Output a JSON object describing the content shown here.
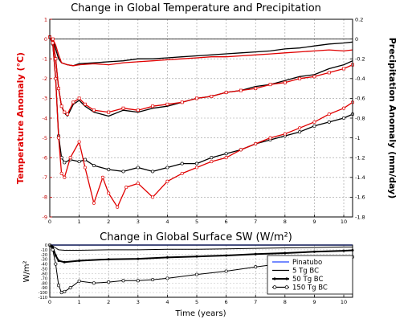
{
  "chart_data": [
    {
      "type": "line",
      "title": "Change in Global Temperature and Precipitation",
      "xlabel": "",
      "ylabel": "Temperature Anomaly (°C)",
      "ylabel_right": "Precipitation Anomaly (mm/day)",
      "xlim": [
        0,
        10.3
      ],
      "ylim": [
        -9,
        1
      ],
      "ylim_right": [
        -1.8,
        0.2
      ],
      "xticks": [
        "0",
        "1",
        "2",
        "3",
        "4",
        "5",
        "6",
        "7",
        "8",
        "9",
        "10"
      ],
      "yticks": [
        "1",
        "0",
        "-1",
        "-2",
        "-3",
        "-4",
        "-5",
        "-6",
        "-7",
        "-8",
        "-9"
      ],
      "yticks_right": [
        "0.2",
        "0",
        "-0.2",
        "-0.4",
        "-0.6",
        "-0.8",
        "-1",
        "-1.2",
        "-1.4",
        "-1.6",
        "-1.8"
      ],
      "grid": true,
      "colors": {
        "temperature": "#e00000",
        "precipitation": "#000000",
        "axis_left": "#c00000"
      },
      "series": [
        {
          "kind": "temperature",
          "case": "5 Tg BC",
          "marker": "none",
          "x": [
            0,
            0.1,
            0.2,
            0.3,
            0.4,
            0.6,
            0.8,
            1,
            1.5,
            2,
            2.5,
            3,
            3.5,
            4,
            4.5,
            5,
            5.5,
            6,
            6.5,
            7,
            7.5,
            8,
            8.5,
            9,
            9.5,
            10,
            10.3
          ],
          "y": [
            0.1,
            0.0,
            -0.3,
            -0.8,
            -1.2,
            -1.3,
            -1.35,
            -1.3,
            -1.25,
            -1.3,
            -1.2,
            -1.15,
            -1.1,
            -1.05,
            -1.0,
            -0.95,
            -0.9,
            -0.9,
            -0.85,
            -0.8,
            -0.75,
            -0.7,
            -0.65,
            -0.6,
            -0.55,
            -0.6,
            -0.55
          ]
        },
        {
          "kind": "temperature",
          "case": "50 Tg BC",
          "marker": "open-square",
          "x": [
            0,
            0.1,
            0.2,
            0.3,
            0.4,
            0.5,
            0.6,
            0.8,
            1,
            1.2,
            1.5,
            2,
            2.5,
            3,
            3.5,
            4,
            4.5,
            5,
            5.5,
            6,
            6.5,
            7,
            7.5,
            8,
            8.5,
            9,
            9.5,
            10,
            10.3
          ],
          "y": [
            0.1,
            0.0,
            -1.0,
            -2.5,
            -3.4,
            -3.7,
            -3.8,
            -3.2,
            -3.0,
            -3.3,
            -3.6,
            -3.7,
            -3.5,
            -3.6,
            -3.4,
            -3.3,
            -3.2,
            -3.0,
            -2.9,
            -2.7,
            -2.6,
            -2.5,
            -2.3,
            -2.2,
            -2.0,
            -1.9,
            -1.7,
            -1.5,
            -1.3
          ]
        },
        {
          "kind": "temperature",
          "case": "150 Tg BC",
          "marker": "open-circle",
          "x": [
            0,
            0.1,
            0.2,
            0.3,
            0.4,
            0.5,
            0.7,
            1,
            1.2,
            1.5,
            1.8,
            2,
            2.3,
            2.6,
            3,
            3.5,
            4,
            4.5,
            5,
            5.5,
            6,
            6.5,
            7,
            7.5,
            8,
            8.5,
            9,
            9.5,
            10,
            10.3
          ],
          "y": [
            0.1,
            -0.2,
            -2.0,
            -5.0,
            -6.8,
            -7.0,
            -6.0,
            -5.2,
            -6.5,
            -8.3,
            -7.0,
            -7.8,
            -8.5,
            -7.5,
            -7.3,
            -8.0,
            -7.2,
            -6.8,
            -6.5,
            -6.2,
            -6.0,
            -5.6,
            -5.3,
            -5.0,
            -4.8,
            -4.5,
            -4.2,
            -3.8,
            -3.5,
            -3.2
          ]
        },
        {
          "kind": "precipitation",
          "case": "5 Tg BC",
          "marker": "none",
          "x": [
            0,
            0.1,
            0.2,
            0.3,
            0.4,
            0.6,
            0.8,
            1,
            1.5,
            2,
            2.5,
            3,
            3.5,
            4,
            4.5,
            5,
            5.5,
            6,
            6.5,
            7,
            7.5,
            8,
            8.5,
            9,
            9.5,
            10,
            10.3
          ],
          "y": [
            0.02,
            0.0,
            -0.1,
            -0.2,
            -0.24,
            -0.26,
            -0.27,
            -0.25,
            -0.24,
            -0.23,
            -0.22,
            -0.2,
            -0.2,
            -0.19,
            -0.18,
            -0.17,
            -0.16,
            -0.15,
            -0.14,
            -0.13,
            -0.12,
            -0.1,
            -0.09,
            -0.07,
            -0.05,
            -0.04,
            -0.03
          ]
        },
        {
          "kind": "precipitation",
          "case": "50 Tg BC",
          "marker": "none",
          "x": [
            0,
            0.1,
            0.2,
            0.3,
            0.4,
            0.5,
            0.6,
            0.8,
            1,
            1.2,
            1.5,
            2,
            2.5,
            3,
            3.5,
            4,
            4.5,
            5,
            5.5,
            6,
            6.5,
            7,
            7.5,
            8,
            8.5,
            9,
            9.5,
            10,
            10.3
          ],
          "y": [
            0.02,
            0.0,
            -0.2,
            -0.5,
            -0.68,
            -0.75,
            -0.78,
            -0.66,
            -0.62,
            -0.68,
            -0.74,
            -0.78,
            -0.72,
            -0.74,
            -0.7,
            -0.68,
            -0.64,
            -0.6,
            -0.58,
            -0.54,
            -0.52,
            -0.48,
            -0.46,
            -0.42,
            -0.38,
            -0.36,
            -0.3,
            -0.26,
            -0.22
          ]
        },
        {
          "kind": "precipitation",
          "case": "150 Tg BC",
          "marker": "open-circle",
          "x": [
            0,
            0.1,
            0.2,
            0.3,
            0.4,
            0.5,
            0.7,
            1,
            1.2,
            1.5,
            2,
            2.5,
            3,
            3.5,
            4,
            4.5,
            5,
            5.5,
            6,
            6.5,
            7,
            7.5,
            8,
            8.5,
            9,
            9.5,
            10,
            10.3
          ],
          "y": [
            0.02,
            -0.05,
            -0.4,
            -0.98,
            -1.2,
            -1.25,
            -1.22,
            -1.24,
            -1.22,
            -1.28,
            -1.32,
            -1.34,
            -1.3,
            -1.34,
            -1.3,
            -1.26,
            -1.26,
            -1.2,
            -1.16,
            -1.12,
            -1.06,
            -1.02,
            -0.98,
            -0.94,
            -0.88,
            -0.84,
            -0.8,
            -0.76
          ]
        }
      ]
    },
    {
      "type": "line",
      "title": "Change in Global Surface SW (W/m²)",
      "xlabel": "Time (years)",
      "ylabel": "W/m²",
      "xlim": [
        0,
        10.3
      ],
      "ylim": [
        -110,
        0
      ],
      "xticks": [
        "0",
        "1",
        "2",
        "3",
        "4",
        "5",
        "6",
        "7",
        "8",
        "9",
        "10"
      ],
      "yticks": [
        "0",
        "-10",
        "-20",
        "-30",
        "-40",
        "-50",
        "-60",
        "-70",
        "-80",
        "-90",
        "-100",
        "-110"
      ],
      "grid": true,
      "legend": "bottom-right",
      "series": [
        {
          "name": "Pinatubo",
          "color": "#2244ff",
          "marker": "none",
          "x": [
            0,
            1,
            2,
            3,
            4,
            5,
            6,
            7,
            8,
            9,
            10,
            10.3
          ],
          "y": [
            0,
            0,
            0,
            0,
            0,
            0,
            0,
            0,
            0,
            0,
            0,
            0
          ]
        },
        {
          "name": "5 Tg BC",
          "color": "#000000",
          "marker": "none",
          "x": [
            0,
            0.1,
            0.2,
            0.3,
            0.5,
            1,
            2,
            3,
            4,
            5,
            6,
            7,
            8,
            9,
            10,
            10.3
          ],
          "y": [
            0,
            -2,
            -6,
            -10,
            -11,
            -11,
            -10,
            -10,
            -9,
            -9,
            -8,
            -7,
            -6,
            -5,
            -4,
            -4
          ]
        },
        {
          "name": "50 Tg BC",
          "color": "#000000",
          "marker": "filled-circle",
          "x": [
            0,
            0.1,
            0.2,
            0.3,
            0.5,
            1,
            2,
            3,
            4,
            5,
            6,
            7,
            8,
            9,
            10,
            10.3
          ],
          "y": [
            0,
            -5,
            -22,
            -33,
            -36,
            -33,
            -30,
            -29,
            -26,
            -24,
            -22,
            -19,
            -17,
            -14,
            -12,
            -11
          ]
        },
        {
          "name": "150 Tg BC",
          "color": "#000000",
          "marker": "open-circle",
          "x": [
            0,
            0.1,
            0.2,
            0.3,
            0.4,
            0.5,
            0.7,
            1,
            1.5,
            2,
            2.5,
            3,
            3.5,
            4,
            5,
            6,
            7,
            8,
            9,
            10,
            10.3
          ],
          "y": [
            0,
            -10,
            -40,
            -85,
            -100,
            -98,
            -90,
            -76,
            -80,
            -78,
            -75,
            -75,
            -73,
            -70,
            -62,
            -55,
            -46,
            -38,
            -33,
            -26,
            -25
          ]
        }
      ]
    }
  ]
}
